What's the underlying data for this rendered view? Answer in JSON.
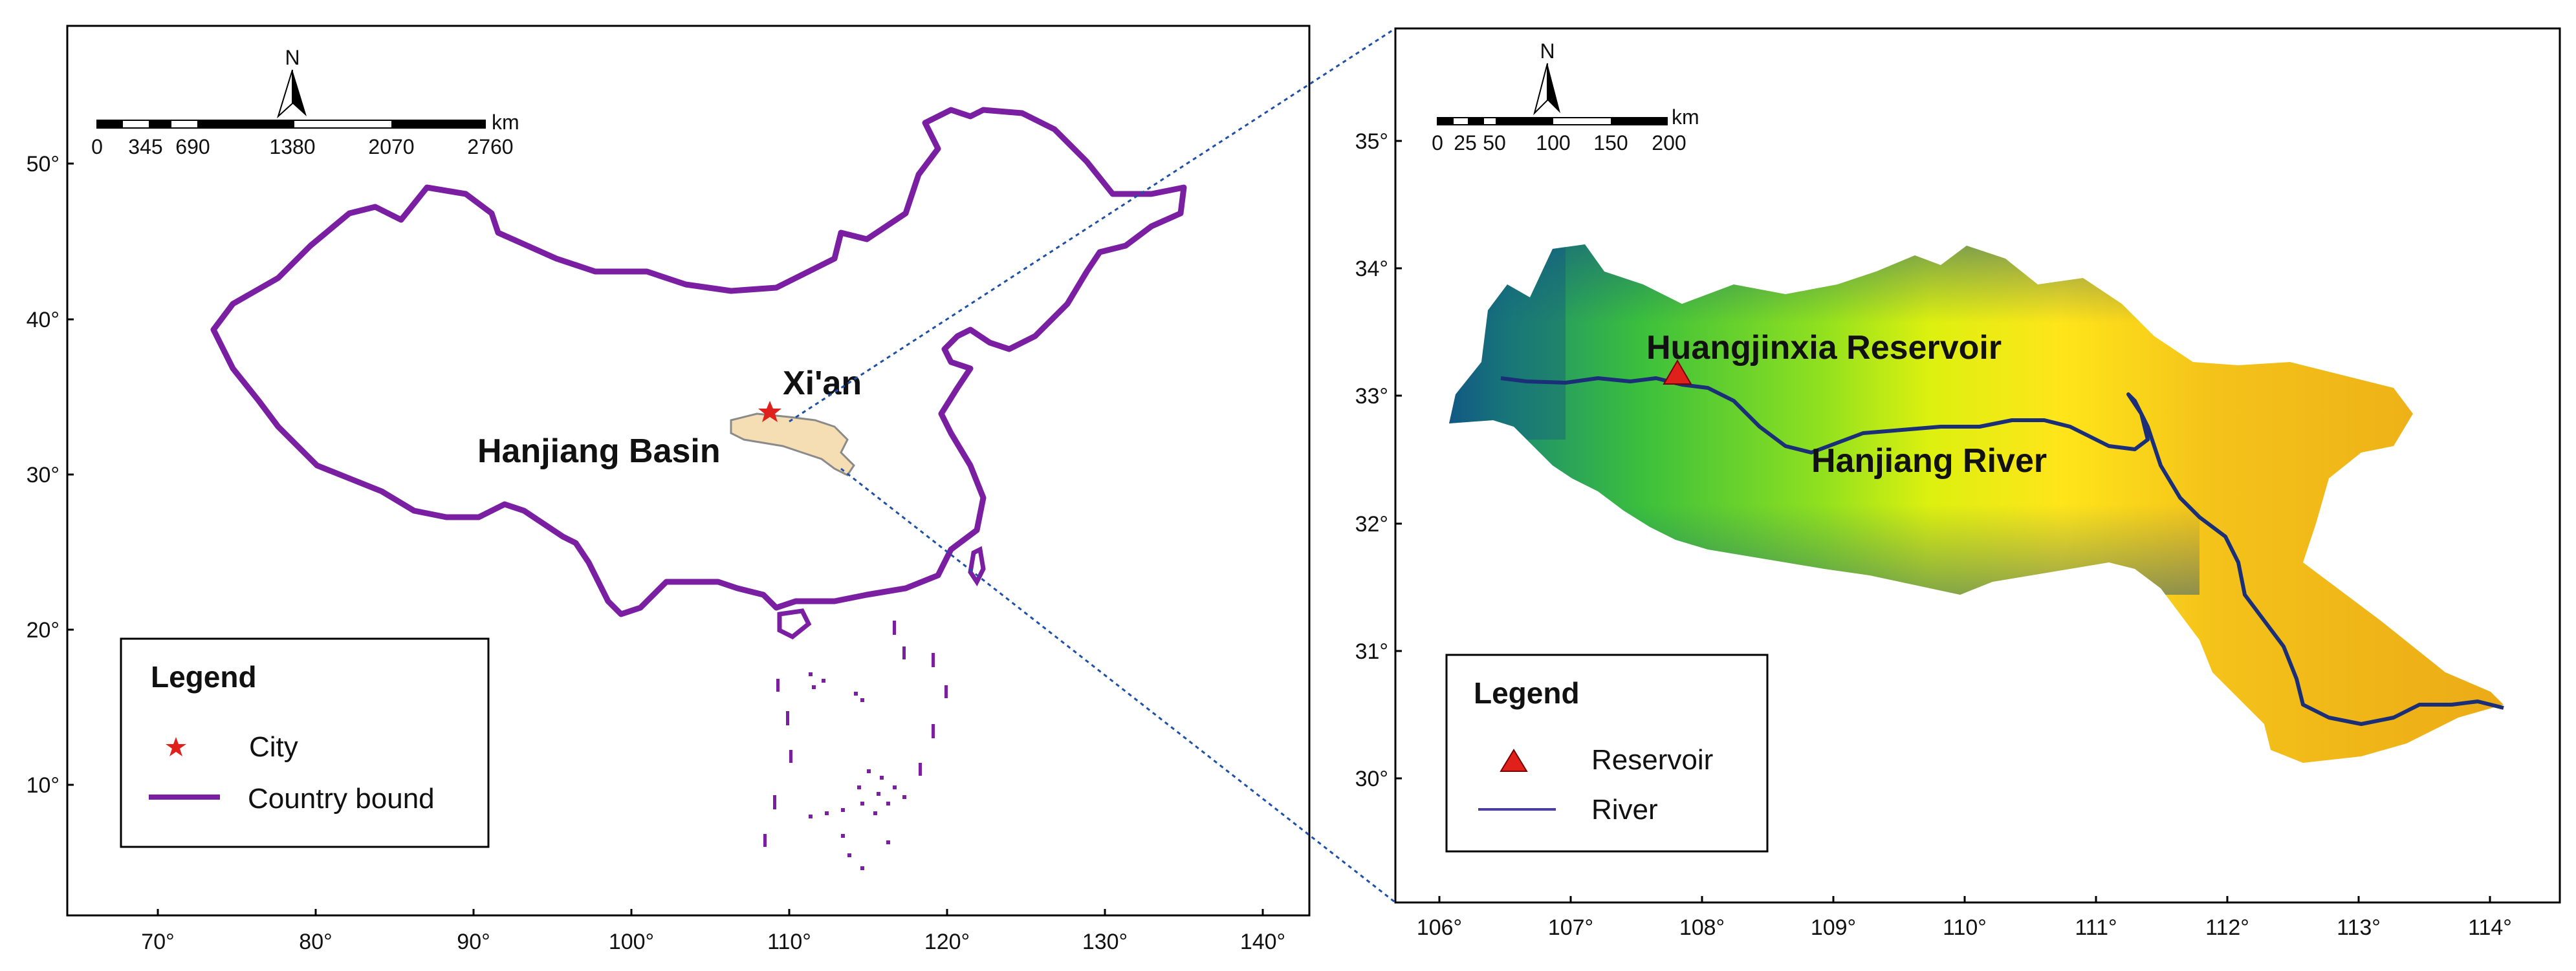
{
  "left_map": {
    "x_ticks": [
      "70°",
      "80°",
      "90°",
      "100°",
      "110°",
      "120°",
      "130°",
      "140°"
    ],
    "y_ticks": [
      "50°",
      "40°",
      "30°",
      "20°",
      "10°"
    ],
    "scale_bar": {
      "labels": [
        "0",
        "345",
        "690",
        "1380",
        "2070",
        "2760"
      ],
      "unit": "km"
    },
    "north_label": "N",
    "labels": {
      "city": "Xi'an",
      "basin": "Hanjiang Basin"
    },
    "legend": {
      "title": "Legend",
      "items": [
        {
          "label": "City",
          "symbol": "red-star"
        },
        {
          "label": "Country bound",
          "symbol": "purple-line"
        }
      ]
    }
  },
  "right_map": {
    "x_ticks": [
      "106°",
      "107°",
      "108°",
      "109°",
      "110°",
      "111°",
      "112°",
      "113°",
      "114°"
    ],
    "y_ticks": [
      "35°",
      "34°",
      "33°",
      "32°",
      "31°",
      "30°"
    ],
    "scale_bar": {
      "labels": [
        "0",
        "25",
        "50",
        "100",
        "150",
        "200"
      ],
      "unit": "km"
    },
    "north_label": "N",
    "labels": {
      "reservoir": "Huangjinxia Reservoir",
      "river": "Hanjiang River"
    },
    "legend": {
      "title": "Legend",
      "items": [
        {
          "label": "Reservoir",
          "symbol": "red-triangle"
        },
        {
          "label": "River",
          "symbol": "navy-line"
        }
      ]
    }
  },
  "colors": {
    "country_bound": "#7B1FA2",
    "city": "#E0201B",
    "basin_fill": "#F5DEB3",
    "river": "#1A2F78",
    "reservoir": "#E0201B",
    "connector": "#1F4FA8",
    "elevation_high": "#0F4C8A",
    "elevation_mid": "#3CC03C",
    "elevation_low_mid": "#FFF200",
    "elevation_low": "#EBA916"
  }
}
